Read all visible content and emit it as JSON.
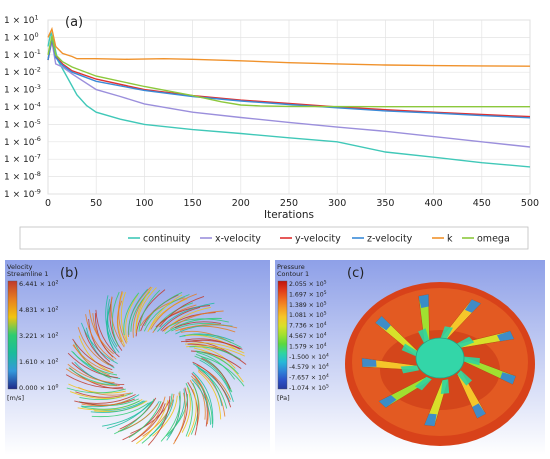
{
  "chart_data": [
    {
      "panel_label": "(a)",
      "type": "line",
      "xlabel": "Iterations",
      "ylabel": "",
      "xlim": [
        0,
        500
      ],
      "ylim": [
        1e-09,
        10
      ],
      "y_scale": "log",
      "grid": true,
      "legend_position": "bottom",
      "x_ticks": [
        0,
        50,
        100,
        150,
        200,
        250,
        300,
        350,
        400,
        450,
        500
      ],
      "y_ticks": [
        {
          "value": 10,
          "mant": "1 × 10",
          "exp": "1"
        },
        {
          "value": 1,
          "mant": "1 × 10",
          "exp": "0"
        },
        {
          "value": 0.1,
          "mant": "1 × 10",
          "exp": "-1"
        },
        {
          "value": 0.01,
          "mant": "1 × 10",
          "exp": "-2"
        },
        {
          "value": 0.001,
          "mant": "1 × 10",
          "exp": "-3"
        },
        {
          "value": 0.0001,
          "mant": "1 × 10",
          "exp": "-4"
        },
        {
          "value": 1e-05,
          "mant": "1 × 10",
          "exp": "-5"
        },
        {
          "value": 1e-06,
          "mant": "1 × 10",
          "exp": "-6"
        },
        {
          "value": 1e-07,
          "mant": "1 × 10",
          "exp": "-7"
        },
        {
          "value": 1e-08,
          "mant": "1 × 10",
          "exp": "-8"
        },
        {
          "value": 1e-09,
          "mant": "1 × 10",
          "exp": "-9"
        }
      ],
      "series": [
        {
          "name": "continuity",
          "color": "#40c8b8",
          "points": [
            [
              0,
              0.3
            ],
            [
              3,
              2
            ],
            [
              6,
              0.5
            ],
            [
              10,
              0.05
            ],
            [
              20,
              0.005
            ],
            [
              30,
              0.0005
            ],
            [
              40,
              0.00012
            ],
            [
              50,
              5e-05
            ],
            [
              75,
              2e-05
            ],
            [
              100,
              1e-05
            ],
            [
              150,
              5e-06
            ],
            [
              200,
              3e-06
            ],
            [
              250,
              1.7e-06
            ],
            [
              300,
              1e-06
            ],
            [
              350,
              2.6e-07
            ],
            [
              400,
              1.3e-07
            ],
            [
              450,
              6.3e-08
            ],
            [
              500,
              3.6e-08
            ]
          ]
        },
        {
          "name": "x-velocity",
          "color": "#9b8fdc",
          "points": [
            [
              0,
              0.05
            ],
            [
              4,
              0.6
            ],
            [
              8,
              0.03
            ],
            [
              15,
              0.02
            ],
            [
              25,
              0.008
            ],
            [
              50,
              0.001
            ],
            [
              75,
              0.0004
            ],
            [
              100,
              0.00015
            ],
            [
              150,
              5e-05
            ],
            [
              200,
              2.5e-05
            ],
            [
              250,
              1.3e-05
            ],
            [
              300,
              7e-06
            ],
            [
              350,
              4e-06
            ],
            [
              400,
              2e-06
            ],
            [
              450,
              1e-06
            ],
            [
              500,
              5e-07
            ]
          ]
        },
        {
          "name": "y-velocity",
          "color": "#e03030",
          "points": [
            [
              0,
              0.05
            ],
            [
              4,
              0.8
            ],
            [
              8,
              0.08
            ],
            [
              15,
              0.03
            ],
            [
              25,
              0.012
            ],
            [
              50,
              0.004
            ],
            [
              100,
              0.001
            ],
            [
              150,
              0.00045
            ],
            [
              200,
              0.00025
            ],
            [
              250,
              0.00016
            ],
            [
              300,
              0.0001
            ],
            [
              350,
              7e-05
            ],
            [
              400,
              5e-05
            ],
            [
              450,
              3.7e-05
            ],
            [
              500,
              2.8e-05
            ]
          ]
        },
        {
          "name": "z-velocity",
          "color": "#3a8ad8",
          "points": [
            [
              0,
              0.05
            ],
            [
              4,
              0.9
            ],
            [
              8,
              0.07
            ],
            [
              15,
              0.025
            ],
            [
              25,
              0.01
            ],
            [
              50,
              0.003
            ],
            [
              100,
              0.0009
            ],
            [
              150,
              0.0004
            ],
            [
              200,
              0.00022
            ],
            [
              250,
              0.00014
            ],
            [
              300,
              9e-05
            ],
            [
              350,
              6e-05
            ],
            [
              400,
              4.5e-05
            ],
            [
              450,
              3.2e-05
            ],
            [
              500,
              2.4e-05
            ]
          ]
        },
        {
          "name": "k",
          "color": "#f0922c",
          "points": [
            [
              0,
              1
            ],
            [
              4,
              3
            ],
            [
              8,
              0.3
            ],
            [
              15,
              0.12
            ],
            [
              25,
              0.08
            ],
            [
              30,
              0.06
            ],
            [
              50,
              0.06
            ],
            [
              80,
              0.055
            ],
            [
              120,
              0.06
            ],
            [
              150,
              0.055
            ],
            [
              200,
              0.045
            ],
            [
              250,
              0.035
            ],
            [
              300,
              0.03
            ],
            [
              350,
              0.026
            ],
            [
              400,
              0.024
            ],
            [
              450,
              0.023
            ],
            [
              500,
              0.022
            ]
          ]
        },
        {
          "name": "omega",
          "color": "#8cc83c",
          "points": [
            [
              0,
              0.1
            ],
            [
              4,
              1.2
            ],
            [
              8,
              0.1
            ],
            [
              15,
              0.04
            ],
            [
              25,
              0.02
            ],
            [
              50,
              0.006
            ],
            [
              100,
              0.0015
            ],
            [
              150,
              0.00045
            ],
            [
              180,
              0.0002
            ],
            [
              200,
              0.00013
            ],
            [
              220,
              0.000115
            ],
            [
              250,
              0.000108
            ],
            [
              300,
              0.000105
            ],
            [
              400,
              0.000104
            ],
            [
              500,
              0.000104
            ]
          ]
        }
      ]
    },
    {
      "panel_label": "(b)",
      "type": "heatmap",
      "legend_title": [
        "Velocity",
        "Streamline 1"
      ],
      "legend_unit": "[m/s]",
      "legend_position": "left",
      "colors": [
        "#c0392b",
        "#e67e22",
        "#f1c40f",
        "#2ecc71",
        "#1abc9c",
        "#3498db",
        "#1f2a8a"
      ],
      "legend_ticks": [
        {
          "mant": "6.441 × 10",
          "exp": "2"
        },
        {
          "mant": "4.831 × 10",
          "exp": "2"
        },
        {
          "mant": "3.221 × 10",
          "exp": "2"
        },
        {
          "mant": "1.610 × 10",
          "exp": "2"
        },
        {
          "mant": "0.000 × 10",
          "exp": "0"
        }
      ]
    },
    {
      "panel_label": "(c)",
      "type": "heatmap",
      "legend_title": [
        "Pressure",
        "Contour 1"
      ],
      "legend_unit": "[Pa]",
      "legend_position": "left",
      "colors": [
        "#c0140e",
        "#e0391a",
        "#ef6a1f",
        "#f59a25",
        "#f5c62a",
        "#d8e02a",
        "#a0e030",
        "#5ad840",
        "#2ed5a0",
        "#25b8d8",
        "#2e84d8",
        "#2c52c8",
        "#263aa0"
      ],
      "legend_ticks": [
        {
          "mant": "2.055 × 10",
          "exp": "5"
        },
        {
          "mant": "1.697 × 10",
          "exp": "5"
        },
        {
          "mant": "1.389 × 10",
          "exp": "5"
        },
        {
          "mant": "1.081 × 10",
          "exp": "5"
        },
        {
          "mant": "7.736 × 10",
          "exp": "4"
        },
        {
          "mant": "4.567 × 10",
          "exp": "4"
        },
        {
          "mant": "1.579 × 10",
          "exp": "4"
        },
        {
          "mant": "-1.500 × 10",
          "exp": "4"
        },
        {
          "mant": "-4.579 × 10",
          "exp": "4"
        },
        {
          "mant": "-7.657 × 10",
          "exp": "4"
        },
        {
          "mant": "-1.074 × 10",
          "exp": "5"
        }
      ]
    }
  ]
}
